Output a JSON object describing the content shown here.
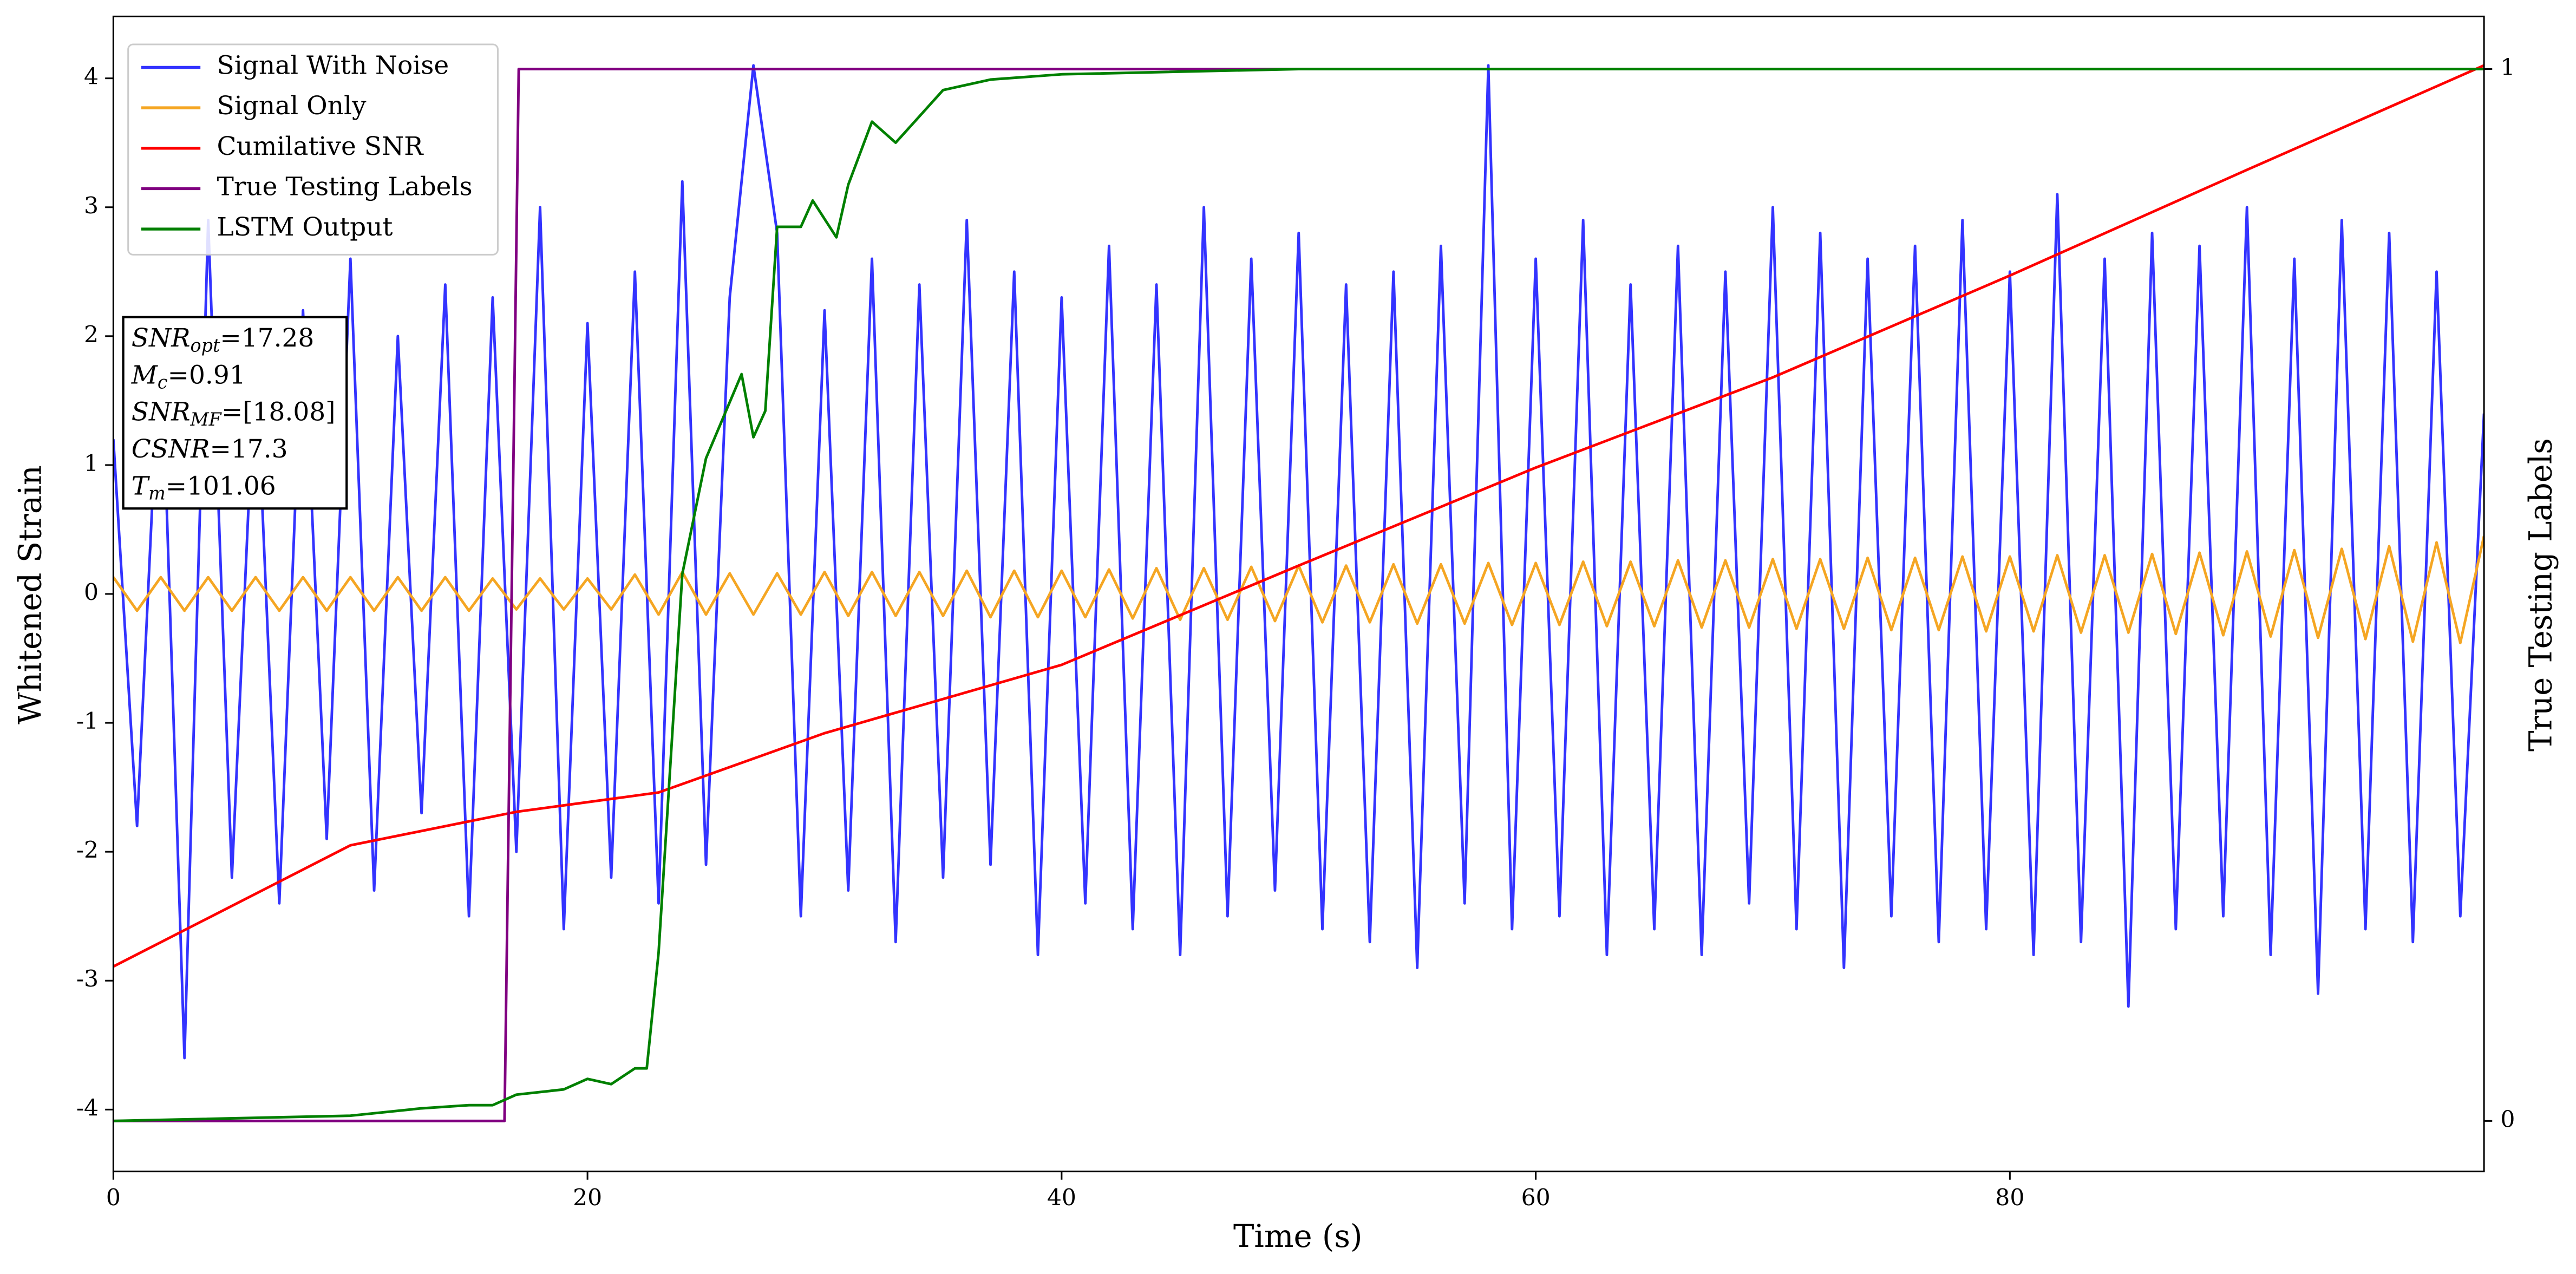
{
  "chart_data": {
    "type": "line",
    "xlabel": "Time (s)",
    "ylabel": "Whitened Strain",
    "y2label": "True Testing Labels",
    "xlim": [
      0,
      100
    ],
    "ylim": [
      -4.48,
      4.48
    ],
    "y2lim": [
      -0.048,
      1.05
    ],
    "xticks": [
      0,
      20,
      40,
      60,
      80
    ],
    "yticks": [
      -4,
      -3,
      -2,
      -1,
      0,
      1,
      2,
      3,
      4
    ],
    "y2ticks": [
      0,
      1
    ],
    "legend": "upper left",
    "x": [
      0,
      1,
      2,
      3,
      4,
      5,
      6,
      7,
      8,
      9,
      10,
      11,
      12,
      13,
      14,
      15,
      16,
      17,
      18,
      19,
      20,
      21,
      22,
      23,
      24,
      25,
      26,
      27,
      28,
      29,
      30,
      31,
      32,
      33,
      34,
      35,
      36,
      37,
      38,
      39,
      40,
      41,
      42,
      43,
      44,
      45,
      46,
      47,
      48,
      49,
      50,
      51,
      52,
      53,
      54,
      55,
      56,
      57,
      58,
      59,
      60,
      61,
      62,
      63,
      64,
      65,
      66,
      67,
      68,
      69,
      70,
      71,
      72,
      73,
      74,
      75,
      76,
      77,
      78,
      79,
      80,
      81,
      82,
      83,
      84,
      85,
      86,
      87,
      88,
      89,
      90,
      91,
      92,
      93,
      94,
      95,
      96,
      97,
      98,
      99,
      100
    ],
    "series": [
      {
        "name": "Signal With Noise",
        "color": "#3333ff",
        "values": [
          1.2,
          -1.8,
          2.1,
          -3.6,
          2.9,
          -2.2,
          1.9,
          -2.4,
          2.2,
          -1.9,
          2.6,
          -2.3,
          2.0,
          -1.7,
          2.4,
          -2.5,
          2.3,
          -2.0,
          3.0,
          -2.6,
          2.1,
          -2.2,
          2.5,
          -2.4,
          3.2,
          -2.1,
          2.3,
          4.1,
          2.8,
          -2.5,
          2.2,
          -2.3,
          2.6,
          -2.7,
          2.4,
          -2.2,
          2.9,
          -2.1,
          2.5,
          -2.8,
          2.3,
          -2.4,
          2.7,
          -2.6,
          2.4,
          -2.8,
          3.0,
          -2.5,
          2.6,
          -2.3,
          2.8,
          -2.6,
          2.4,
          -2.7,
          2.5,
          -2.9,
          2.7,
          -2.4,
          4.1,
          -2.6,
          2.6,
          -2.5,
          2.9,
          -2.8,
          2.4,
          -2.6,
          2.7,
          -2.8,
          2.5,
          -2.4,
          3.0,
          -2.6,
          2.8,
          -2.9,
          2.6,
          -2.5,
          2.7,
          -2.7,
          2.9,
          -2.6,
          2.5,
          -2.8,
          3.1,
          -2.7,
          2.6,
          -3.2,
          2.8,
          -2.6,
          2.7,
          -2.5,
          3.0,
          -2.8,
          2.6,
          -3.1,
          2.9,
          -2.6,
          2.8,
          -2.7,
          2.5,
          -2.5,
          1.4
        ]
      },
      {
        "name": "Signal Only",
        "color": "#f5a623",
        "values": [
          0.13,
          -0.13,
          0.13,
          -0.13,
          0.13,
          -0.13,
          0.13,
          -0.13,
          0.13,
          -0.13,
          0.13,
          -0.13,
          0.13,
          -0.13,
          0.13,
          -0.13,
          0.12,
          -0.12,
          0.12,
          -0.12,
          0.12,
          -0.12,
          0.15,
          -0.16,
          0.17,
          -0.16,
          0.16,
          -0.16,
          0.16,
          -0.16,
          0.17,
          -0.17,
          0.17,
          -0.17,
          0.17,
          -0.17,
          0.18,
          -0.18,
          0.18,
          -0.18,
          0.18,
          -0.18,
          0.19,
          -0.19,
          0.2,
          -0.2,
          0.2,
          -0.2,
          0.21,
          -0.21,
          0.22,
          -0.22,
          0.22,
          -0.22,
          0.23,
          -0.23,
          0.23,
          -0.23,
          0.24,
          -0.24,
          0.24,
          -0.24,
          0.25,
          -0.25,
          0.25,
          -0.25,
          0.26,
          -0.26,
          0.26,
          -0.26,
          0.27,
          -0.27,
          0.27,
          -0.27,
          0.28,
          -0.28,
          0.28,
          -0.28,
          0.29,
          -0.29,
          0.29,
          -0.29,
          0.3,
          -0.3,
          0.3,
          -0.3,
          0.31,
          -0.31,
          0.32,
          -0.32,
          0.33,
          -0.33,
          0.34,
          -0.34,
          0.35,
          -0.35,
          0.37,
          -0.37,
          0.4,
          -0.38,
          0.45
        ]
      },
      {
        "name": "Cumilative SNR",
        "color": "#ff0000",
        "x": [
          0,
          10,
          17,
          23,
          30,
          40,
          50,
          60,
          70,
          80,
          90,
          100
        ],
        "values": [
          -2.89,
          -1.95,
          -1.69,
          -1.54,
          -1.08,
          -0.55,
          0.22,
          0.98,
          1.68,
          2.47,
          3.29,
          4.1
        ]
      },
      {
        "name": "True Testing Labels",
        "color": "#800080",
        "axis": "y2",
        "x": [
          0,
          16.5,
          17.1,
          100
        ],
        "values": [
          0,
          0,
          1,
          1
        ]
      },
      {
        "name": "LSTM Output",
        "color": "#008000",
        "axis": "y2",
        "x": [
          0,
          10,
          13,
          15,
          16,
          17,
          19,
          20,
          21,
          22,
          22.5,
          23,
          24,
          25,
          26.5,
          27,
          27.5,
          28,
          29,
          29.5,
          30.5,
          31,
          32,
          33,
          34,
          35,
          37,
          40,
          50,
          100
        ],
        "values": [
          0,
          0.005,
          0.012,
          0.015,
          0.015,
          0.025,
          0.03,
          0.04,
          0.035,
          0.05,
          0.05,
          0.16,
          0.52,
          0.63,
          0.71,
          0.65,
          0.675,
          0.85,
          0.85,
          0.875,
          0.84,
          0.89,
          0.95,
          0.93,
          0.955,
          0.98,
          0.99,
          0.995,
          1,
          1
        ]
      }
    ],
    "annotations": [
      {
        "symbol": "SNR",
        "sub": "opt",
        "text": "=17.28"
      },
      {
        "symbol": "M",
        "sub": "c",
        "text": "=0.91"
      },
      {
        "symbol": "SNR",
        "sub": "MF",
        "text": "=[18.08]"
      },
      {
        "symbol": "CSNR",
        "text": "=17.3"
      },
      {
        "symbol": "T",
        "sub": "m",
        "text": "=101.06"
      }
    ]
  }
}
